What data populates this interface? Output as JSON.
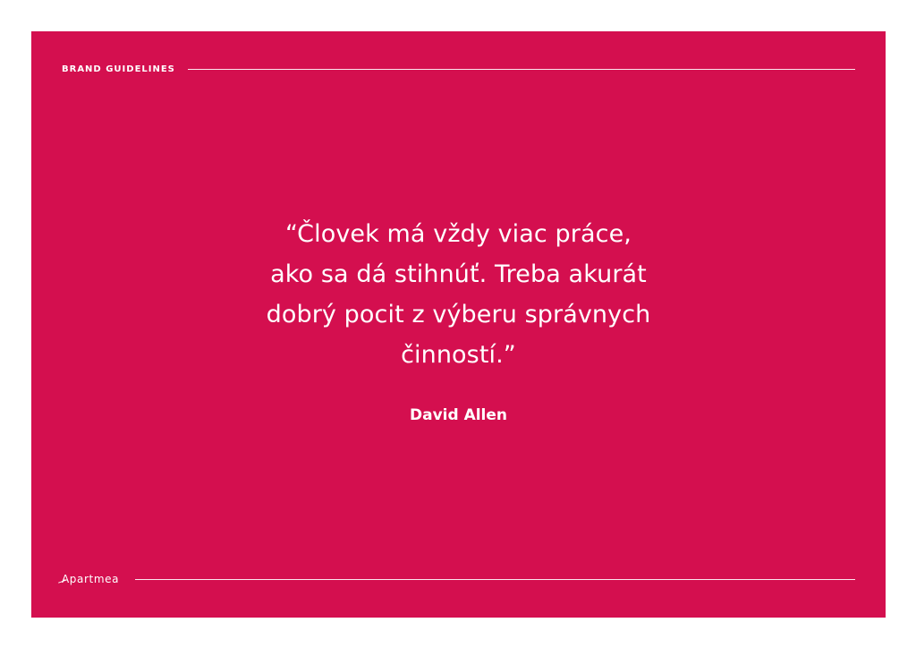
{
  "header": {
    "label": "BRAND GUIDELINES"
  },
  "quote": {
    "lines": [
      "“Človek má vždy viac práce,",
      "ako sa dá stihnúť. Treba akurát",
      "dobrý pocit z výberu správnych",
      "činností.”"
    ],
    "author": "David Allen"
  },
  "footer": {
    "logo_text": "Apartmea"
  },
  "colors": {
    "background": "#d40f4f",
    "text": "#ffffff"
  }
}
